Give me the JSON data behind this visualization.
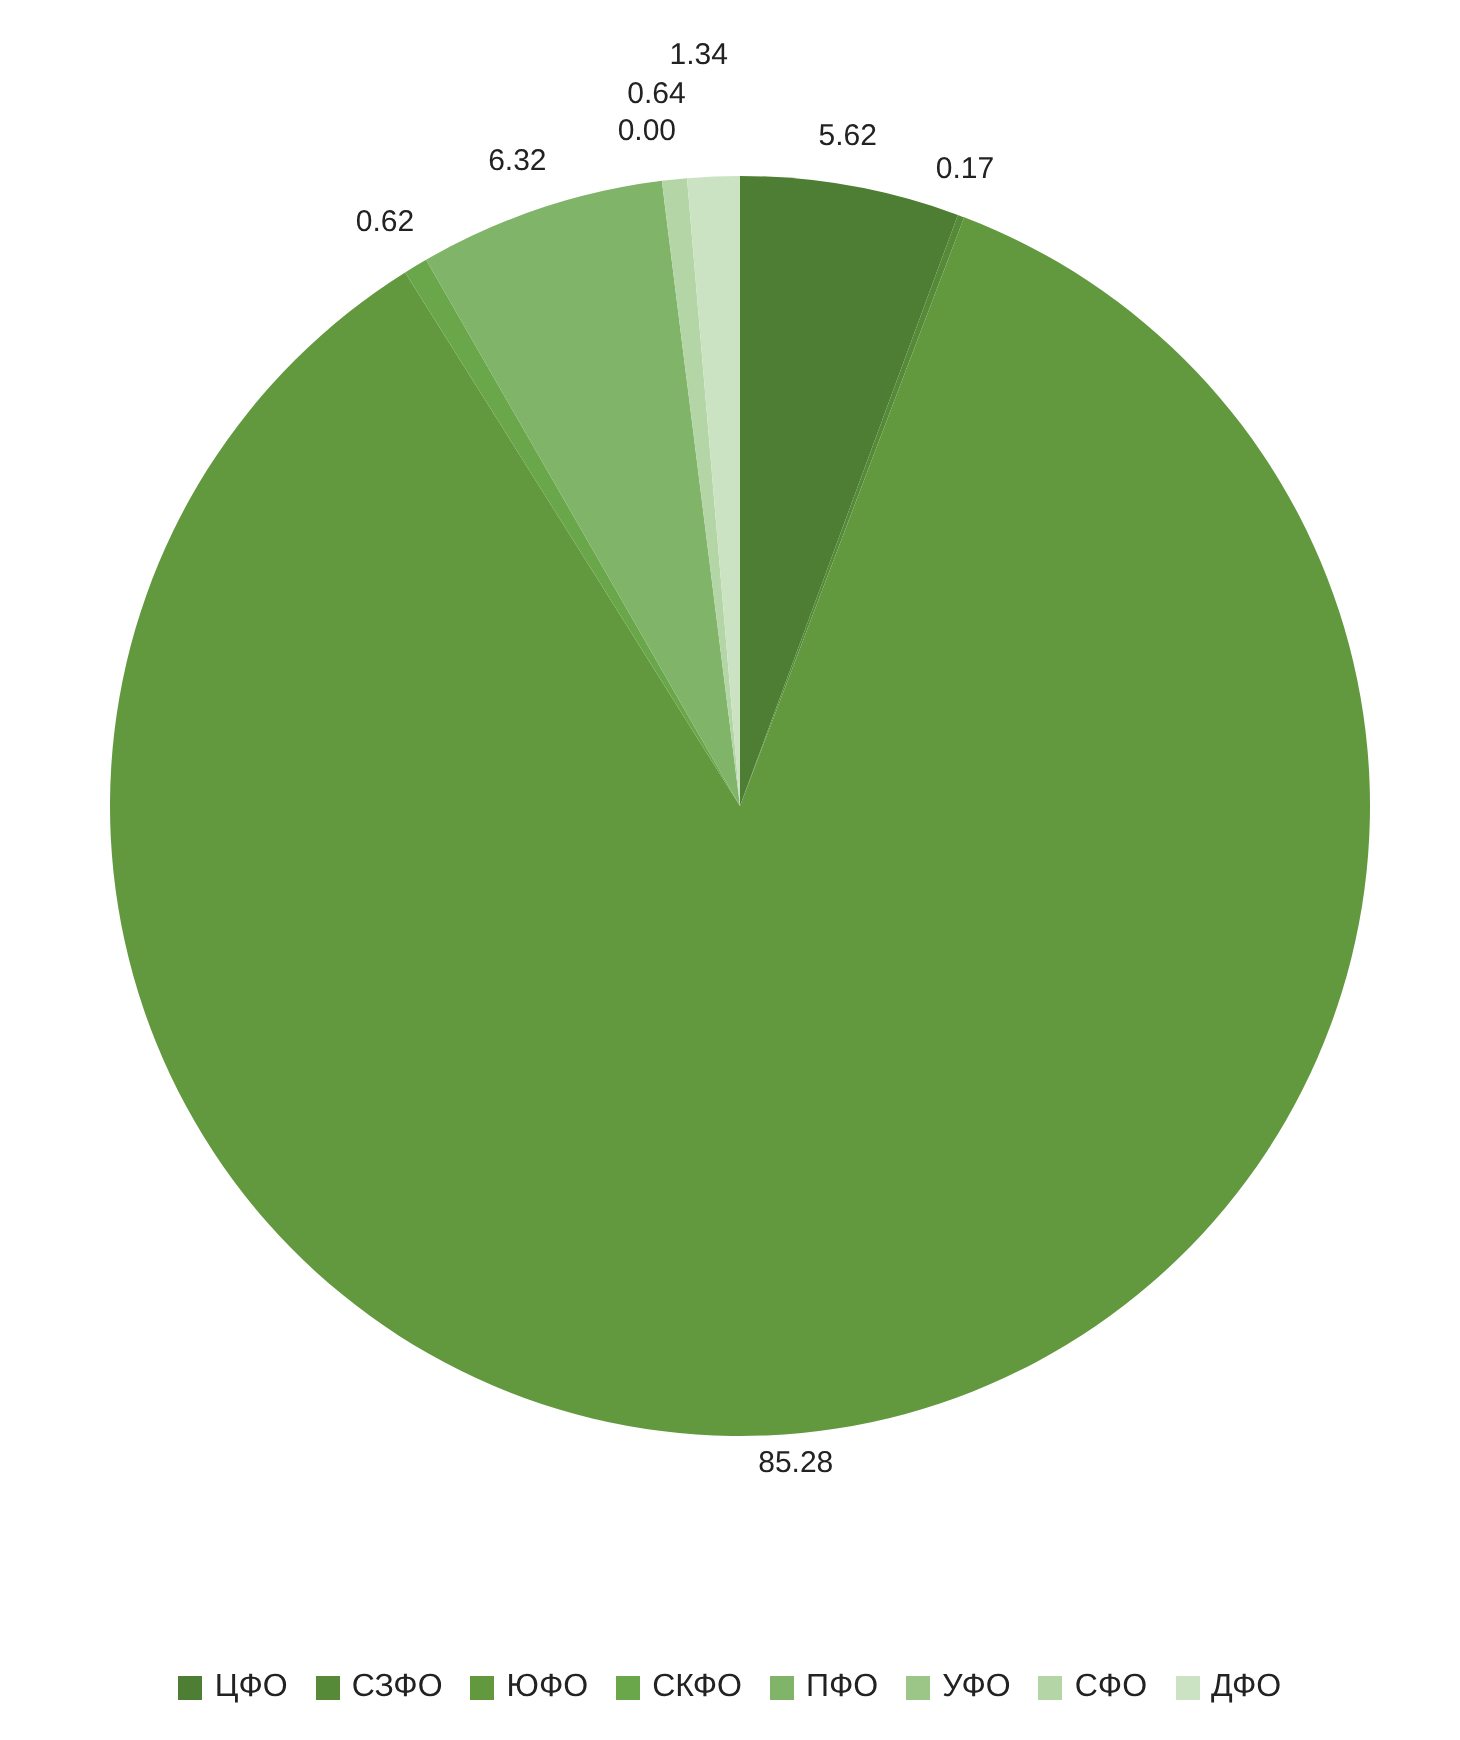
{
  "chart_data": {
    "type": "pie",
    "categories": [
      "ЦФО",
      "СЗФО",
      "ЮФО",
      "СКФО",
      "ПФО",
      "УФО",
      "СФО",
      "ДФО"
    ],
    "values": [
      5.62,
      0.17,
      85.28,
      0.62,
      6.32,
      0,
      0.64,
      1.34
    ],
    "value_labels": [
      "5.62",
      "0.17",
      "85.28",
      "0.62",
      "6.32",
      "0.00",
      "0.64",
      "1.34"
    ],
    "colors": [
      "#4e7d34",
      "#568a38",
      "#62993f",
      "#6aa64a",
      "#80b468",
      "#9cc687",
      "#b4d6a6",
      "#cbe3c2"
    ],
    "legend": "bottom"
  }
}
